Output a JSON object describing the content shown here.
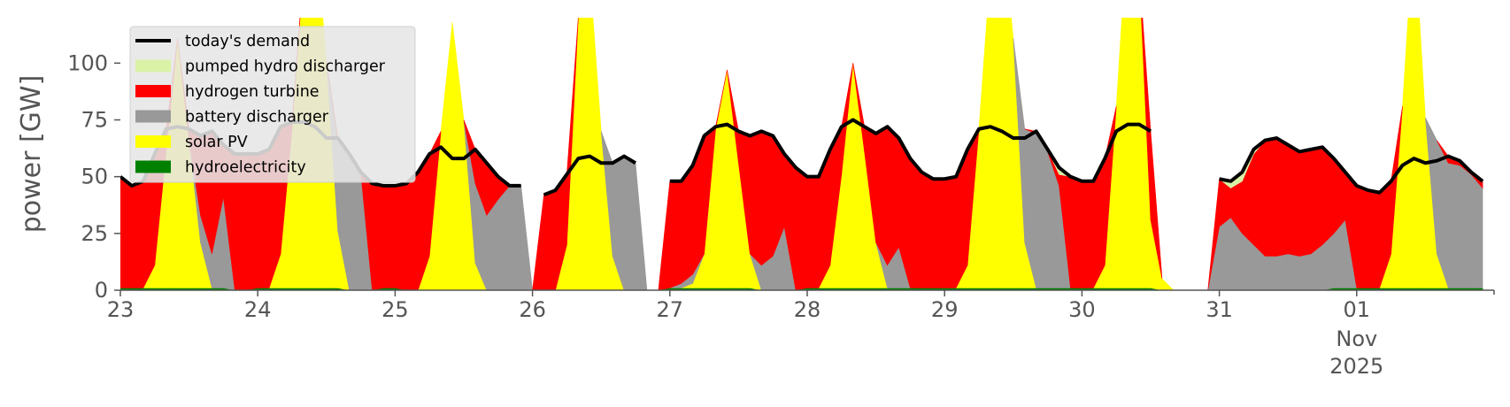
{
  "chart_data": {
    "type": "area",
    "stacked": true,
    "ylabel": "power [GW]",
    "ylim": [
      0,
      120
    ],
    "yticks": [
      0,
      25,
      50,
      75,
      100
    ],
    "x_range": [
      "2025-10-23T00:00",
      "2025-11-01T23:00"
    ],
    "xticks": [
      {
        "date": "2025-10-23",
        "label": "23",
        "sublabels": []
      },
      {
        "date": "2025-10-24",
        "label": "24",
        "sublabels": []
      },
      {
        "date": "2025-10-25",
        "label": "25",
        "sublabels": []
      },
      {
        "date": "2025-10-26",
        "label": "26",
        "sublabels": []
      },
      {
        "date": "2025-10-27",
        "label": "27",
        "sublabels": []
      },
      {
        "date": "2025-10-28",
        "label": "28",
        "sublabels": []
      },
      {
        "date": "2025-10-29",
        "label": "29",
        "sublabels": []
      },
      {
        "date": "2025-10-30",
        "label": "30",
        "sublabels": []
      },
      {
        "date": "2025-10-31",
        "label": "31",
        "sublabels": []
      },
      {
        "date": "2025-11-01",
        "label": "01",
        "sublabels": [
          "Nov",
          "2025"
        ]
      }
    ],
    "grid": false,
    "legend_position": "top-left",
    "legend": [
      {
        "label": "today's demand",
        "kind": "line",
        "color": "#000000"
      },
      {
        "label": "pumped hydro discharger",
        "kind": "patch",
        "color": "#d9f2a6"
      },
      {
        "label": "hydrogen turbine",
        "kind": "patch",
        "color": "#ff0000"
      },
      {
        "label": "battery discharger",
        "kind": "patch",
        "color": "#999999"
      },
      {
        "label": "solar PV",
        "kind": "patch",
        "color": "#ffff00"
      },
      {
        "label": "hydroelectricity",
        "kind": "patch",
        "color": "#008000"
      }
    ],
    "days": [
      {
        "date": "2025-10-23",
        "demand": [
          50,
          46,
          48,
          60,
          71,
          72,
          71,
          68,
          70,
          64,
          60,
          60
        ],
        "hydro": [
          1,
          1,
          1,
          1,
          1,
          1,
          1,
          1,
          1,
          1,
          0,
          0
        ],
        "solar": [
          0,
          0,
          0,
          10,
          60,
          110,
          65,
          20,
          0,
          0,
          0,
          0
        ],
        "battery": [
          0,
          0,
          0,
          0,
          0,
          0,
          0,
          12,
          15,
          40,
          0,
          0
        ],
        "pumped": [
          0,
          0,
          0,
          0,
          0,
          0,
          0,
          0,
          0,
          0,
          0,
          0
        ]
      },
      {
        "date": "2025-10-24",
        "demand": [
          60,
          62,
          72,
          74,
          74,
          72,
          67,
          67,
          60,
          52,
          47,
          46
        ],
        "hydro": [
          1,
          1,
          1,
          1,
          1,
          1,
          1,
          1,
          0,
          0,
          0,
          1
        ],
        "solar": [
          0,
          0,
          15,
          70,
          140,
          160,
          100,
          25,
          0,
          0,
          0,
          0
        ],
        "battery": [
          0,
          0,
          0,
          0,
          0,
          0,
          0,
          40,
          60,
          52,
          0,
          0
        ],
        "pumped": [
          0,
          0,
          0,
          0,
          0,
          0,
          0,
          0,
          0,
          0,
          0,
          0
        ]
      },
      {
        "date": "2025-10-25",
        "demand": [
          46,
          47,
          52,
          60,
          63,
          58,
          58,
          62,
          56,
          50,
          46,
          46
        ],
        "hydro": [
          1,
          0,
          0,
          0,
          0,
          0,
          0,
          0,
          0,
          0,
          0,
          0
        ],
        "solar": [
          0,
          0,
          0,
          15,
          70,
          118,
          75,
          12,
          0,
          0,
          0,
          0
        ],
        "battery": [
          0,
          0,
          0,
          0,
          0,
          0,
          0,
          35,
          33,
          40,
          46,
          46
        ],
        "pumped": [
          0,
          0,
          0,
          0,
          0,
          0,
          0,
          0,
          0,
          0,
          0,
          0
        ]
      },
      {
        "date": "2025-10-26",
        "demand": [
          null,
          42,
          44,
          51,
          58,
          59,
          56,
          56,
          59,
          56,
          null,
          null
        ],
        "hydro": [
          0,
          0,
          0,
          0,
          0,
          0,
          0,
          0,
          0,
          0,
          0,
          0
        ],
        "solar": [
          0,
          0,
          0,
          20,
          120,
          140,
          70,
          15,
          0,
          0,
          0,
          0
        ],
        "battery": [
          0,
          0,
          0,
          0,
          0,
          0,
          0,
          41,
          59,
          56,
          0,
          0
        ],
        "pumped": [
          0,
          0,
          0,
          0,
          0,
          0,
          0,
          0,
          0,
          0,
          0,
          0
        ]
      },
      {
        "date": "2025-10-27",
        "demand": [
          48,
          48,
          55,
          68,
          72,
          73,
          70,
          68,
          70,
          68,
          60,
          54
        ],
        "hydro": [
          1,
          1,
          1,
          1,
          1,
          1,
          1,
          1,
          0,
          0,
          0,
          0
        ],
        "solar": [
          0,
          0,
          2,
          15,
          70,
          96,
          55,
          15,
          0,
          0,
          0,
          0
        ],
        "battery": [
          0,
          2,
          4,
          0,
          0,
          0,
          0,
          0,
          11,
          15,
          28,
          0
        ],
        "pumped": [
          0,
          0,
          0,
          0,
          0,
          0,
          0,
          0,
          0,
          0,
          0,
          0
        ]
      },
      {
        "date": "2025-10-28",
        "demand": [
          50,
          50,
          62,
          72,
          75,
          72,
          69,
          72,
          67,
          58,
          52,
          49
        ],
        "hydro": [
          1,
          1,
          1,
          1,
          1,
          1,
          1,
          1,
          1,
          1,
          1,
          1
        ],
        "solar": [
          0,
          0,
          10,
          50,
          99,
          60,
          20,
          0,
          0,
          0,
          0,
          0
        ],
        "battery": [
          0,
          0,
          0,
          0,
          0,
          0,
          0,
          10,
          18,
          0,
          0,
          0
        ],
        "pumped": [
          0,
          0,
          0,
          0,
          0,
          0,
          0,
          0,
          0,
          0,
          0,
          0
        ]
      },
      {
        "date": "2025-10-29",
        "demand": [
          49,
          50,
          62,
          71,
          72,
          70,
          67,
          67,
          70,
          62,
          54,
          50
        ],
        "hydro": [
          1,
          1,
          1,
          1,
          1,
          1,
          1,
          1,
          1,
          1,
          1,
          1
        ],
        "solar": [
          0,
          0,
          10,
          70,
          140,
          160,
          110,
          20,
          0,
          0,
          0,
          0
        ],
        "battery": [
          0,
          0,
          0,
          0,
          0,
          0,
          0,
          50,
          68,
          60,
          45,
          0
        ],
        "pumped": [
          0,
          0,
          0,
          0,
          0,
          0,
          0,
          0,
          0,
          0,
          3,
          0
        ]
      },
      {
        "date": "2025-10-30",
        "demand": [
          48,
          48,
          58,
          70,
          73,
          73,
          70,
          null,
          null,
          null,
          null,
          null
        ],
        "hydro": [
          1,
          1,
          1,
          1,
          1,
          1,
          1,
          0,
          0,
          0,
          0,
          0
        ],
        "solar": [
          0,
          0,
          10,
          80,
          160,
          140,
          30,
          5,
          0,
          0,
          0,
          0
        ],
        "battery": [
          0,
          0,
          0,
          0,
          0,
          0,
          0,
          0,
          0,
          0,
          0,
          0
        ],
        "pumped": [
          0,
          0,
          0,
          0,
          0,
          0,
          0,
          0,
          0,
          0,
          0,
          0
        ]
      },
      {
        "date": "2025-10-31",
        "demand": [
          49,
          48,
          52,
          62,
          66,
          67,
          64,
          61,
          62,
          63,
          58,
          52
        ],
        "hydro": [
          0,
          0,
          0,
          0,
          0,
          0,
          0,
          0,
          0,
          0,
          1,
          1
        ],
        "solar": [
          0,
          0,
          0,
          0,
          0,
          0,
          0,
          0,
          0,
          0,
          0,
          0
        ],
        "battery": [
          28,
          32,
          25,
          20,
          15,
          15,
          16,
          15,
          16,
          20,
          24,
          30
        ],
        "pumped": [
          0,
          3,
          4,
          2,
          0,
          0,
          0,
          0,
          0,
          0,
          0,
          0
        ]
      },
      {
        "date": "2025-11-01",
        "demand": [
          46,
          44,
          43,
          48,
          55,
          58,
          56,
          57,
          59,
          57,
          52,
          48
        ],
        "hydro": [
          1,
          1,
          1,
          1,
          1,
          1,
          1,
          1,
          1,
          1,
          1,
          1
        ],
        "solar": [
          0,
          0,
          0,
          15,
          80,
          160,
          75,
          15,
          0,
          0,
          0,
          0
        ],
        "battery": [
          0,
          0,
          0,
          0,
          0,
          0,
          0,
          50,
          55,
          54,
          50,
          44
        ],
        "pumped": [
          0,
          0,
          0,
          0,
          0,
          0,
          0,
          0,
          0,
          0,
          0,
          0
        ]
      }
    ]
  }
}
